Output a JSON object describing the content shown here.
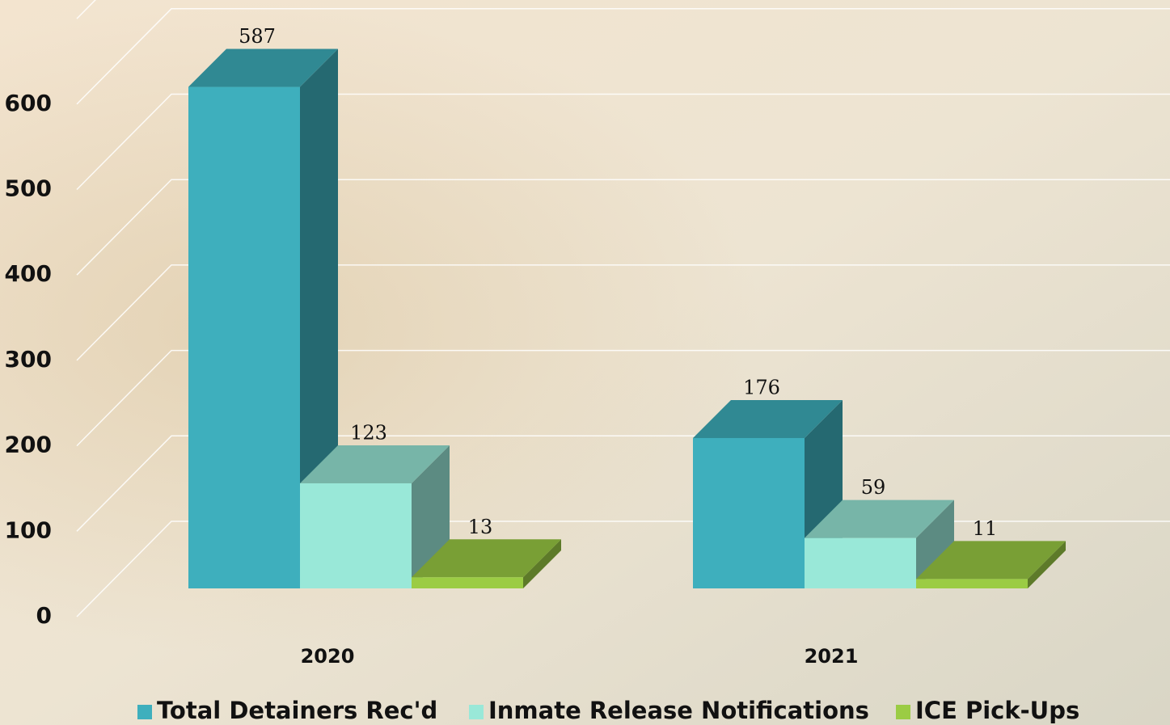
{
  "chart_data": {
    "type": "bar3d",
    "categories": [
      "2020",
      "2021"
    ],
    "series": [
      {
        "name": "Total Detainers Rec'd",
        "color": "#3eafbd",
        "values": [
          587,
          176
        ]
      },
      {
        "name": "Inmate Release Notifications",
        "color": "#99e8d8",
        "values": [
          123,
          59
        ]
      },
      {
        "name": "ICE Pick-Ups",
        "color": "#9bcc44",
        "values": [
          13,
          11
        ]
      }
    ],
    "ylim": [
      0,
      700
    ],
    "yticks": [
      0,
      100,
      200,
      300,
      400,
      500,
      600
    ],
    "grid": true
  }
}
